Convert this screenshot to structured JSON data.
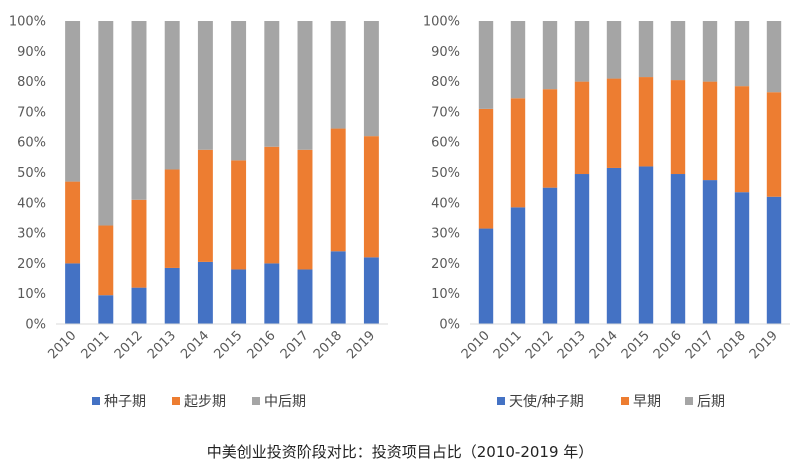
{
  "caption": "中美创业投资阶段对比：投资项目占比（2010-2019 年）",
  "colors": {
    "c1": "#4472C4",
    "c2": "#ED7D31",
    "c3": "#A5A5A5"
  },
  "chart_data": [
    {
      "type": "bar",
      "stacked": true,
      "categories": [
        "2010",
        "2011",
        "2012",
        "2013",
        "2014",
        "2015",
        "2016",
        "2017",
        "2018",
        "2019"
      ],
      "y_ticks": [
        "0%",
        "10%",
        "20%",
        "30%",
        "40%",
        "50%",
        "60%",
        "70%",
        "80%",
        "90%",
        "100%"
      ],
      "ylim": [
        0,
        100
      ],
      "legend_position": "bottom",
      "series": [
        {
          "name": "种子期",
          "color": "#4472C4",
          "values": [
            20,
            9.5,
            12,
            18.5,
            20.5,
            18,
            20,
            18,
            24,
            22
          ]
        },
        {
          "name": "起步期",
          "color": "#ED7D31",
          "values": [
            27,
            23,
            29,
            32.5,
            37,
            36,
            38.5,
            39.5,
            40.5,
            40
          ]
        },
        {
          "name": "中后期",
          "color": "#A5A5A5",
          "values": [
            53,
            67.5,
            59,
            49,
            42.5,
            46,
            41.5,
            42.5,
            35.5,
            38
          ]
        }
      ]
    },
    {
      "type": "bar",
      "stacked": true,
      "categories": [
        "2010",
        "2011",
        "2012",
        "2013",
        "2014",
        "2015",
        "2016",
        "2017",
        "2018",
        "2019"
      ],
      "y_ticks": [
        "0%",
        "10%",
        "20%",
        "30%",
        "40%",
        "50%",
        "60%",
        "70%",
        "80%",
        "90%",
        "100%"
      ],
      "ylim": [
        0,
        100
      ],
      "legend_position": "bottom",
      "series": [
        {
          "name": "天使/种子期",
          "color": "#4472C4",
          "values": [
            31.5,
            38.5,
            45,
            49.5,
            51.5,
            52,
            49.5,
            47.5,
            43.5,
            42
          ]
        },
        {
          "name": "早期",
          "color": "#ED7D31",
          "values": [
            39.5,
            36,
            32.5,
            30.5,
            29.5,
            29.5,
            31,
            32.5,
            35,
            34.5
          ]
        },
        {
          "name": "后期",
          "color": "#A5A5A5",
          "values": [
            29,
            25.5,
            22.5,
            20,
            19,
            18.5,
            19.5,
            20,
            21.5,
            23.5
          ]
        }
      ]
    }
  ]
}
